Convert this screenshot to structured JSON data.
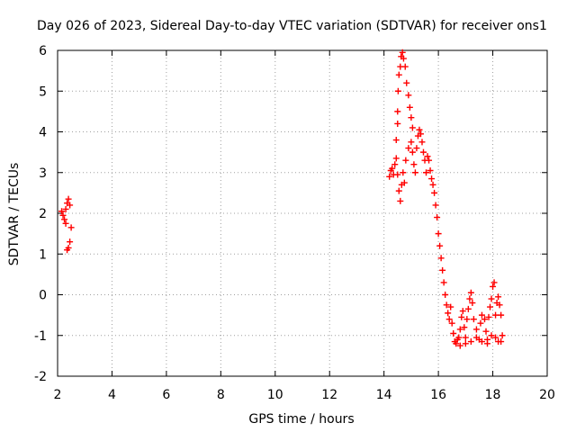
{
  "chart_data": {
    "type": "scatter",
    "title": "Day 026 of 2023, Sidereal Day-to-day VTEC variation (SDTVAR) for receiver ons1",
    "xlabel": "GPS time / hours",
    "ylabel": "SDTVAR / TECUs",
    "xlim": [
      2,
      20
    ],
    "ylim": [
      -2,
      6
    ],
    "xticks": [
      2,
      4,
      6,
      8,
      10,
      12,
      14,
      16,
      18,
      20
    ],
    "yticks": [
      -2,
      -1,
      0,
      1,
      2,
      3,
      4,
      5,
      6
    ],
    "xtick_labels": [
      "2",
      "4",
      "6",
      "8",
      "10",
      "12",
      "14",
      "16",
      "18",
      "20"
    ],
    "ytick_labels": [
      "-2",
      "-1",
      "0",
      "1",
      "2",
      "3",
      "4",
      "5",
      "6"
    ],
    "grid": true,
    "marker": "+",
    "series_color": "#ff0000",
    "series": [
      {
        "name": "SDTVAR",
        "points": [
          [
            2.15,
            2.05
          ],
          [
            2.2,
            1.95
          ],
          [
            2.25,
            1.85
          ],
          [
            2.3,
            1.75
          ],
          [
            2.3,
            2.1
          ],
          [
            2.35,
            2.25
          ],
          [
            2.4,
            2.35
          ],
          [
            2.45,
            2.2
          ],
          [
            2.5,
            1.65
          ],
          [
            2.45,
            1.3
          ],
          [
            2.4,
            1.15
          ],
          [
            2.35,
            1.1
          ],
          [
            14.2,
            2.9
          ],
          [
            14.25,
            3.05
          ],
          [
            14.3,
            3.1
          ],
          [
            14.35,
            2.95
          ],
          [
            14.4,
            3.2
          ],
          [
            14.45,
            3.35
          ],
          [
            14.5,
            2.95
          ],
          [
            14.55,
            2.55
          ],
          [
            14.6,
            2.3
          ],
          [
            14.65,
            2.7
          ],
          [
            14.7,
            3.0
          ],
          [
            14.75,
            2.75
          ],
          [
            14.45,
            3.8
          ],
          [
            14.5,
            4.2
          ],
          [
            14.5,
            4.5
          ],
          [
            14.52,
            5.0
          ],
          [
            14.55,
            5.4
          ],
          [
            14.6,
            5.6
          ],
          [
            14.63,
            5.85
          ],
          [
            14.68,
            5.95
          ],
          [
            14.72,
            5.8
          ],
          [
            14.78,
            5.6
          ],
          [
            14.83,
            5.2
          ],
          [
            14.9,
            4.9
          ],
          [
            14.95,
            4.6
          ],
          [
            15.0,
            4.35
          ],
          [
            15.05,
            4.1
          ],
          [
            14.8,
            3.3
          ],
          [
            14.9,
            3.6
          ],
          [
            15.0,
            3.75
          ],
          [
            15.05,
            3.5
          ],
          [
            15.1,
            3.2
          ],
          [
            15.15,
            3.0
          ],
          [
            15.2,
            3.6
          ],
          [
            15.25,
            3.9
          ],
          [
            15.3,
            4.05
          ],
          [
            15.35,
            3.95
          ],
          [
            15.4,
            3.75
          ],
          [
            15.45,
            3.5
          ],
          [
            15.5,
            3.3
          ],
          [
            15.55,
            3.0
          ],
          [
            15.6,
            3.4
          ],
          [
            15.65,
            3.3
          ],
          [
            15.7,
            3.05
          ],
          [
            15.75,
            2.85
          ],
          [
            15.8,
            2.7
          ],
          [
            15.85,
            2.5
          ],
          [
            15.9,
            2.2
          ],
          [
            15.95,
            1.9
          ],
          [
            16.0,
            1.5
          ],
          [
            16.05,
            1.2
          ],
          [
            16.1,
            0.9
          ],
          [
            16.15,
            0.6
          ],
          [
            16.2,
            0.3
          ],
          [
            16.25,
            0.0
          ],
          [
            16.3,
            -0.25
          ],
          [
            16.35,
            -0.45
          ],
          [
            16.4,
            -0.6
          ],
          [
            16.45,
            -0.3
          ],
          [
            16.5,
            -0.7
          ],
          [
            16.55,
            -0.95
          ],
          [
            16.6,
            -1.15
          ],
          [
            16.65,
            -1.2
          ],
          [
            16.75,
            -1.05
          ],
          [
            16.8,
            -0.85
          ],
          [
            16.85,
            -0.55
          ],
          [
            16.9,
            -0.4
          ],
          [
            16.95,
            -0.8
          ],
          [
            17.0,
            -1.05
          ],
          [
            17.05,
            -0.6
          ],
          [
            17.1,
            -0.35
          ],
          [
            17.15,
            -0.1
          ],
          [
            17.2,
            0.05
          ],
          [
            17.25,
            -0.2
          ],
          [
            17.3,
            -0.6
          ],
          [
            17.4,
            -0.85
          ],
          [
            17.5,
            -1.1
          ],
          [
            17.55,
            -0.7
          ],
          [
            17.6,
            -0.5
          ],
          [
            17.7,
            -0.6
          ],
          [
            17.75,
            -0.9
          ],
          [
            17.8,
            -1.2
          ],
          [
            17.85,
            -0.55
          ],
          [
            17.9,
            -0.3
          ],
          [
            17.95,
            -0.1
          ],
          [
            18.0,
            0.2
          ],
          [
            18.05,
            0.3
          ],
          [
            18.1,
            -0.5
          ],
          [
            18.15,
            -0.2
          ],
          [
            18.2,
            -0.05
          ],
          [
            18.25,
            -0.25
          ],
          [
            18.3,
            -0.5
          ],
          [
            18.35,
            -1.0
          ],
          [
            18.3,
            -1.15
          ],
          [
            18.2,
            -1.15
          ],
          [
            18.1,
            -1.05
          ],
          [
            17.95,
            -1.0
          ],
          [
            17.8,
            -1.1
          ],
          [
            17.6,
            -1.15
          ],
          [
            17.4,
            -1.05
          ],
          [
            17.2,
            -1.15
          ],
          [
            17.0,
            -1.2
          ],
          [
            16.8,
            -1.25
          ],
          [
            16.7,
            -1.1
          ]
        ]
      }
    ]
  }
}
